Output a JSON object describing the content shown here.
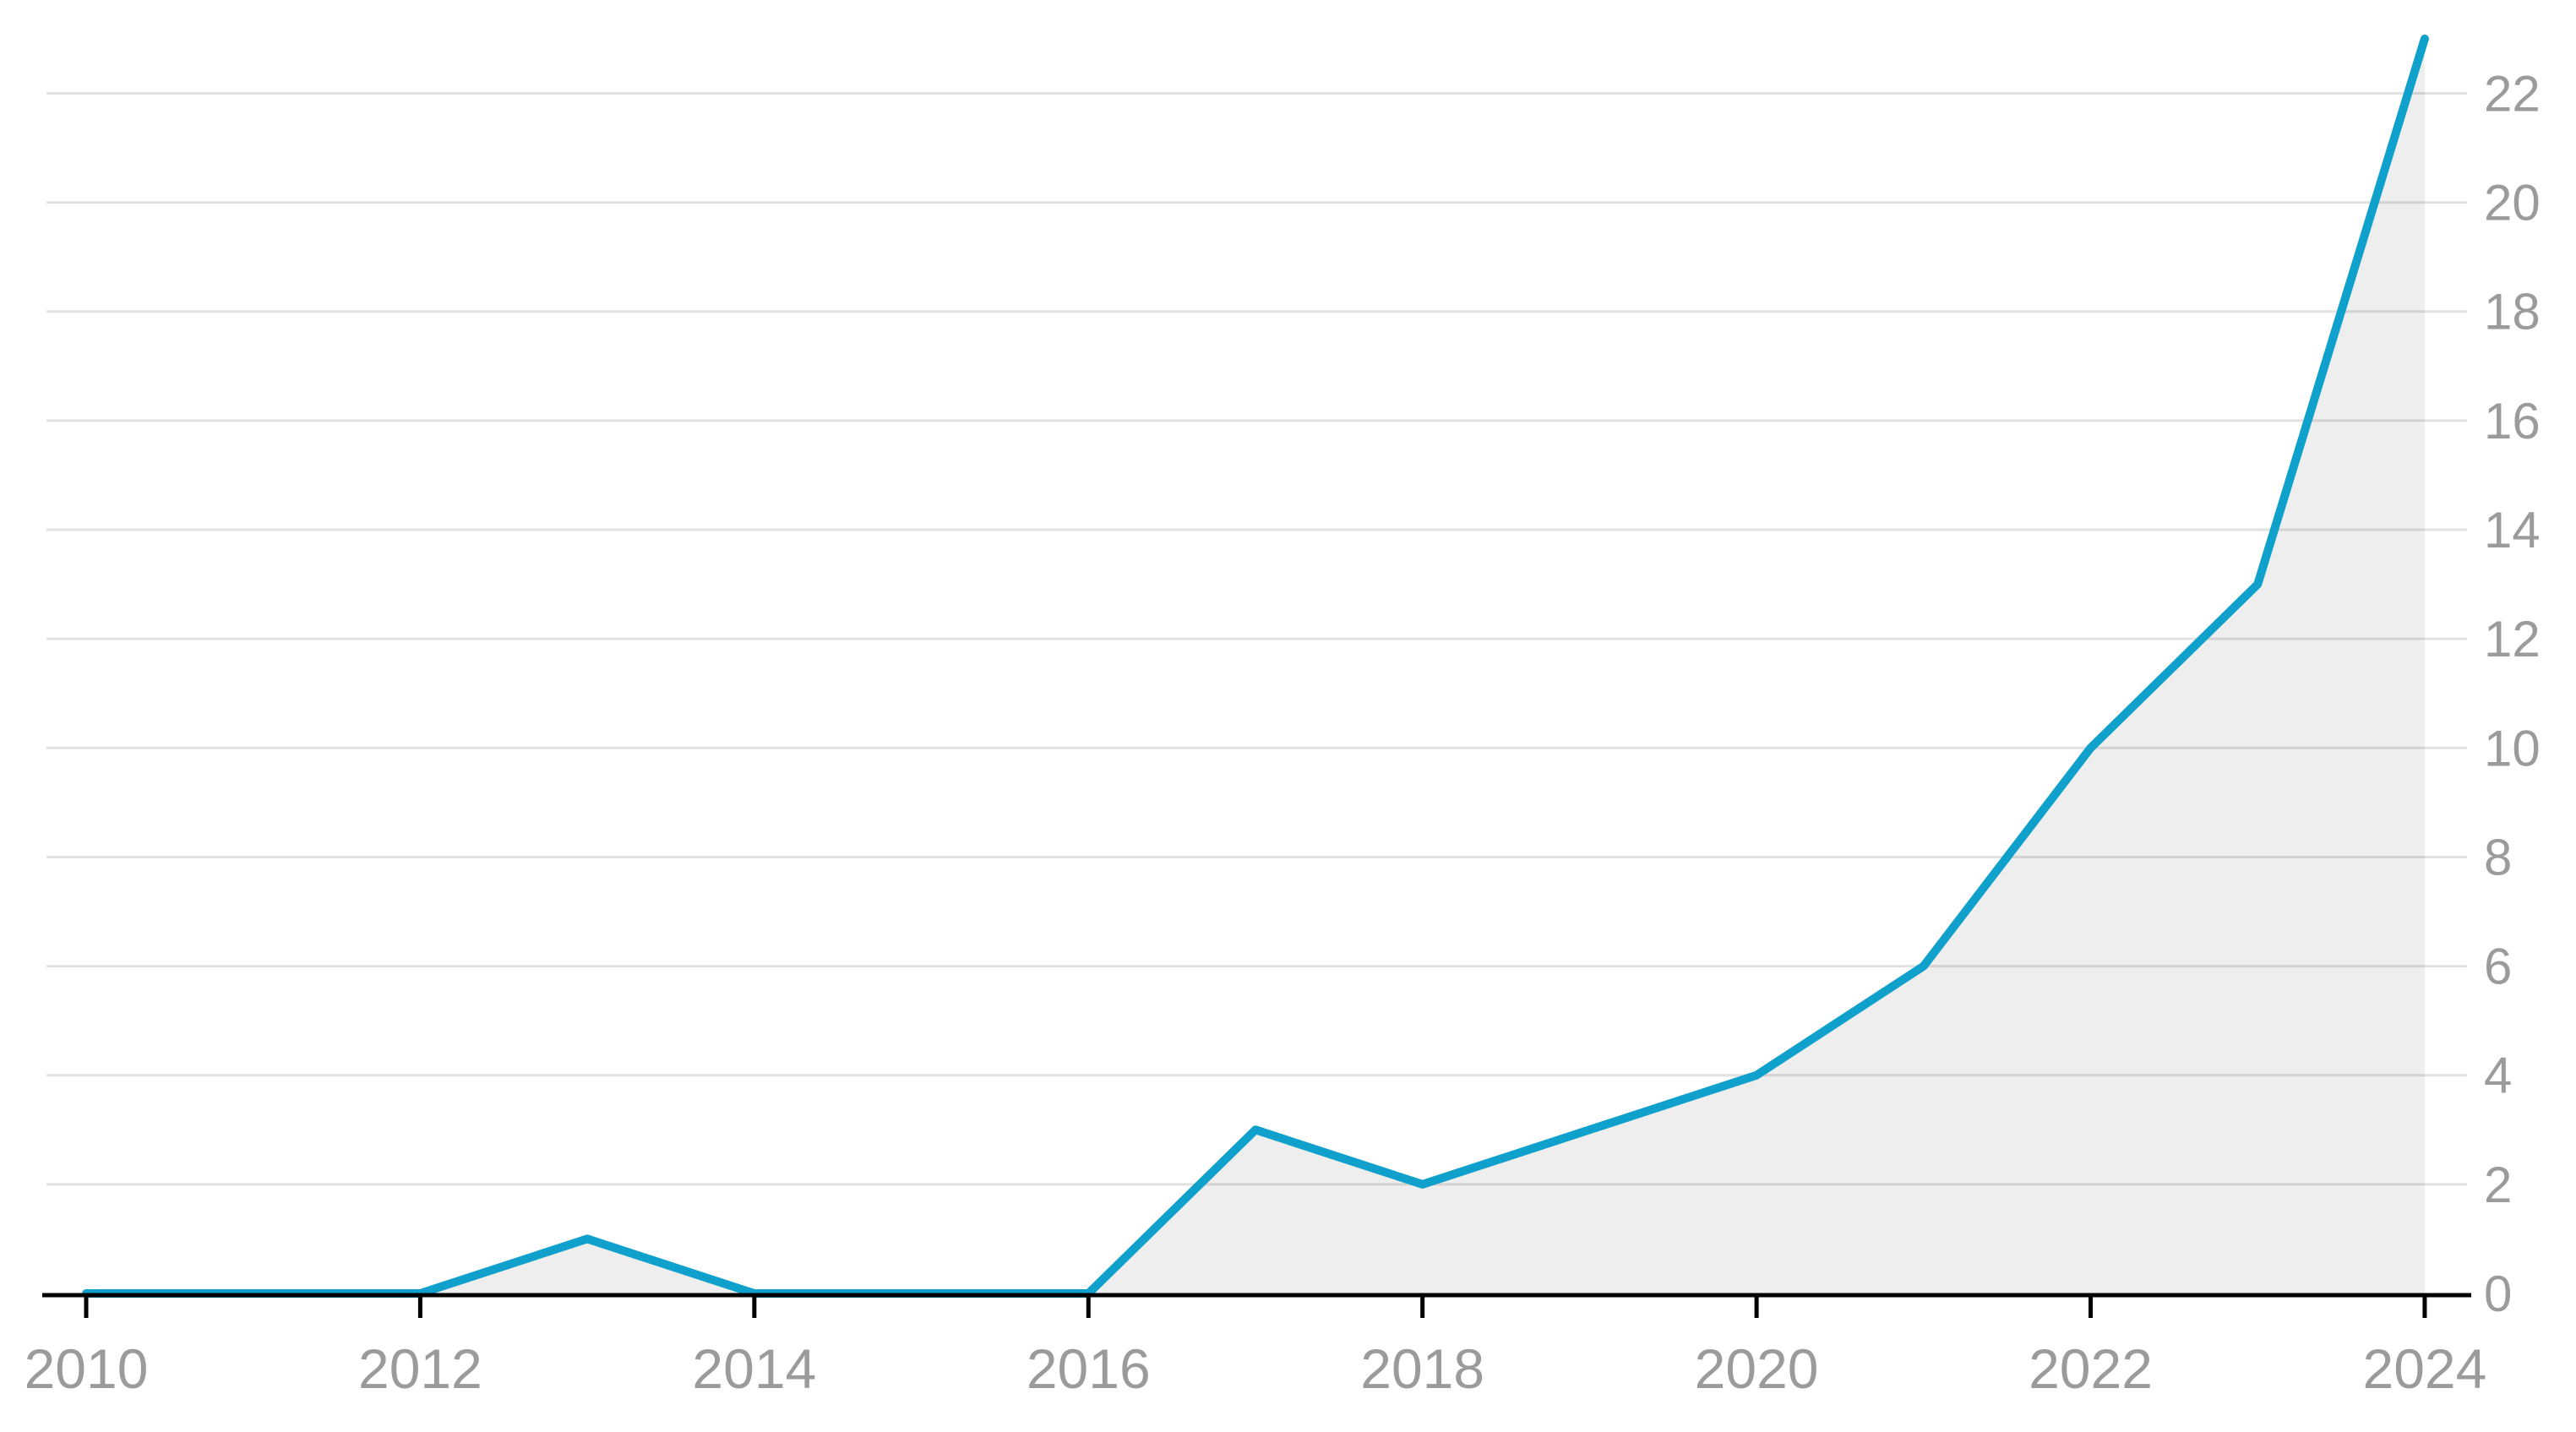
{
  "chart_data": {
    "type": "area",
    "title": "",
    "xlabel": "",
    "ylabel": "",
    "x": [
      2010,
      2011,
      2012,
      2013,
      2014,
      2015,
      2016,
      2017,
      2018,
      2019,
      2020,
      2021,
      2022,
      2023,
      2024
    ],
    "values": [
      0,
      0,
      0,
      1,
      0,
      0,
      0,
      3,
      2,
      3,
      4,
      6,
      10,
      13,
      23
    ],
    "x_tick_labels": [
      "2010",
      "2012",
      "2014",
      "2016",
      "2018",
      "2020",
      "2022",
      "2024"
    ],
    "x_tick_years": [
      2010,
      2012,
      2014,
      2016,
      2018,
      2020,
      2022,
      2024
    ],
    "y_tick_labels": [
      "0",
      "2",
      "4",
      "6",
      "8",
      "10",
      "12",
      "14",
      "16",
      "18",
      "20",
      "22"
    ],
    "y_ticks": [
      0,
      2,
      4,
      6,
      8,
      10,
      12,
      14,
      16,
      18,
      20,
      22
    ],
    "xlim": [
      2010,
      2024
    ],
    "ylim": [
      0,
      23
    ],
    "grid": "horizontal",
    "legend": "none",
    "y_axis_side": "right",
    "colors": {
      "line": "#0fa0cb",
      "area_fill": "rgba(0,0,0,0.065)",
      "gridline": "#e2e2e2",
      "axis": "#000000",
      "tick_label": "#9b9b9b"
    }
  }
}
